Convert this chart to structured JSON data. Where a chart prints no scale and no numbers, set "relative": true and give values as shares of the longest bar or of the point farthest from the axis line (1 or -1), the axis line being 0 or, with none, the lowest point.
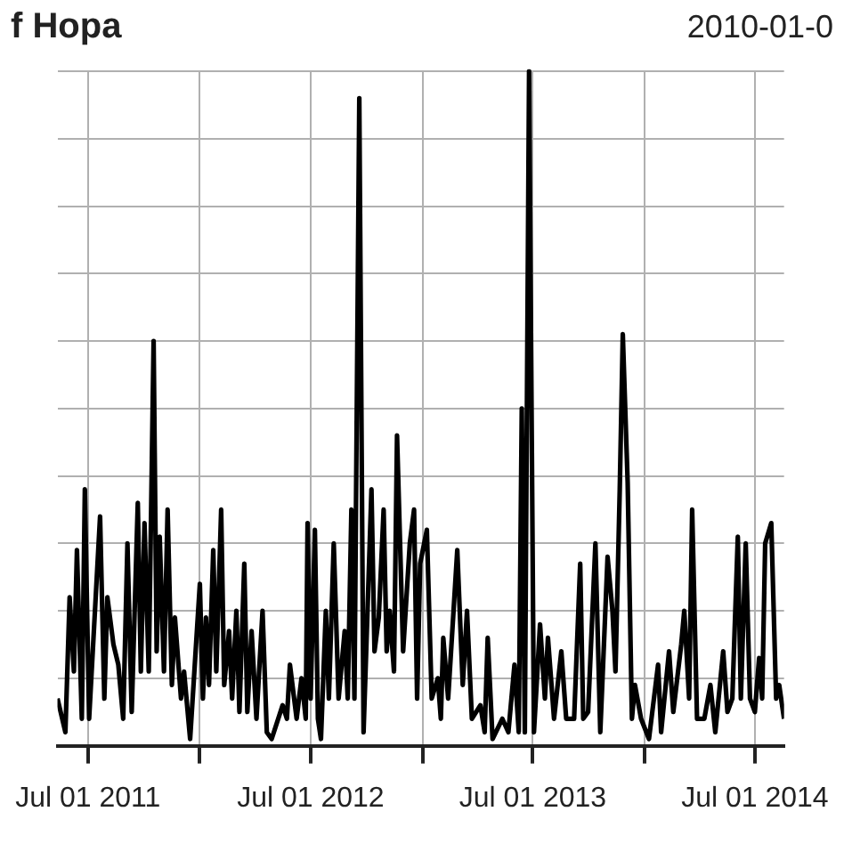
{
  "chart_data": {
    "type": "line",
    "title": "f Hopa",
    "subtitle": "2010-01-0",
    "relative": true,
    "color": "#000000",
    "x": [
      "2011-05-12",
      "2011-05-25",
      "2011-06-01",
      "2011-06-08",
      "2011-06-13",
      "2011-06-21",
      "2011-06-26",
      "2011-07-03",
      "2011-07-21",
      "2011-07-28",
      "2011-08-02",
      "2011-08-12",
      "2011-08-20",
      "2011-08-28",
      "2011-09-04",
      "2011-09-11",
      "2011-09-21",
      "2011-09-26",
      "2011-10-02",
      "2011-10-09",
      "2011-10-17",
      "2011-10-22",
      "2011-10-27",
      "2011-11-03",
      "2011-11-09",
      "2011-11-16",
      "2011-11-21",
      "2011-12-01",
      "2011-12-06",
      "2011-12-16",
      "2012-01-01",
      "2012-01-06",
      "2012-01-11",
      "2012-01-16",
      "2012-01-23",
      "2012-01-28",
      "2012-02-05",
      "2012-02-10",
      "2012-02-18",
      "2012-02-23",
      "2012-03-01",
      "2012-03-06",
      "2012-03-14",
      "2012-03-19",
      "2012-03-26",
      "2012-04-03",
      "2012-04-13",
      "2012-04-20",
      "2012-04-28",
      "2012-05-16",
      "2012-05-23",
      "2012-05-28",
      "2012-06-08",
      "2012-06-16",
      "2012-06-23",
      "2012-06-26",
      "2012-07-01",
      "2012-07-08",
      "2012-07-13",
      "2012-07-18",
      "2012-07-26",
      "2012-07-31",
      "2012-08-08",
      "2012-08-16",
      "2012-08-26",
      "2012-08-31",
      "2012-09-06",
      "2012-09-11",
      "2012-09-19",
      "2012-09-26",
      "2012-10-09",
      "2012-10-14",
      "2012-10-21",
      "2012-10-29",
      "2012-11-03",
      "2012-11-08",
      "2012-11-15",
      "2012-11-20",
      "2012-11-30",
      "2012-12-11",
      "2012-12-18",
      "2012-12-23",
      "2012-12-28",
      "2013-01-08",
      "2013-01-16",
      "2013-01-26",
      "2013-01-31",
      "2013-02-04",
      "2013-02-12",
      "2013-02-27",
      "2013-03-08",
      "2013-03-15",
      "2013-03-23",
      "2013-04-06",
      "2013-04-13",
      "2013-04-18",
      "2013-04-26",
      "2013-05-12",
      "2013-05-22",
      "2013-06-01",
      "2013-06-08",
      "2013-06-13",
      "2013-06-18",
      "2013-06-25",
      "2013-07-03",
      "2013-07-13",
      "2013-07-21",
      "2013-07-26",
      "2013-08-05",
      "2013-08-17",
      "2013-08-25",
      "2013-09-07",
      "2013-09-17",
      "2013-09-22",
      "2013-09-30",
      "2013-10-12",
      "2013-10-20",
      "2013-11-01",
      "2013-11-09",
      "2013-11-14",
      "2013-11-21",
      "2013-11-26",
      "2013-12-04",
      "2013-12-11",
      "2013-12-16",
      "2013-12-26",
      "2014-01-08",
      "2014-01-23",
      "2014-01-28",
      "2014-02-10",
      "2014-02-17",
      "2014-03-02",
      "2014-03-07",
      "2014-03-15",
      "2014-03-20",
      "2014-03-28",
      "2014-04-09",
      "2014-04-19",
      "2014-04-27",
      "2014-05-10",
      "2014-05-17",
      "2014-05-25",
      "2014-06-03",
      "2014-06-08",
      "2014-06-16",
      "2014-06-23",
      "2014-07-01",
      "2014-07-08",
      "2014-07-13",
      "2014-07-18",
      "2014-07-28",
      "2014-08-05",
      "2014-08-10",
      "2014-08-18"
    ],
    "values": [
      0.07,
      0.02,
      0.22,
      0.11,
      0.29,
      0.04,
      0.38,
      0.04,
      0.34,
      0.07,
      0.22,
      0.15,
      0.12,
      0.04,
      0.3,
      0.05,
      0.36,
      0.11,
      0.33,
      0.11,
      0.6,
      0.14,
      0.31,
      0.11,
      0.35,
      0.09,
      0.19,
      0.07,
      0.11,
      0.01,
      0.24,
      0.07,
      0.19,
      0.09,
      0.29,
      0.11,
      0.35,
      0.09,
      0.17,
      0.07,
      0.2,
      0.05,
      0.27,
      0.05,
      0.17,
      0.04,
      0.2,
      0.02,
      0.01,
      0.06,
      0.04,
      0.12,
      0.04,
      0.1,
      0.04,
      0.33,
      0.07,
      0.32,
      0.04,
      0.01,
      0.2,
      0.07,
      0.3,
      0.07,
      0.17,
      0.07,
      0.35,
      0.07,
      0.96,
      0.02,
      0.38,
      0.14,
      0.19,
      0.35,
      0.14,
      0.2,
      0.11,
      0.46,
      0.14,
      0.3,
      0.35,
      0.07,
      0.27,
      0.32,
      0.07,
      0.1,
      0.04,
      0.16,
      0.07,
      0.29,
      0.09,
      0.2,
      0.04,
      0.06,
      0.02,
      0.16,
      0.01,
      0.04,
      0.02,
      0.12,
      0.02,
      0.5,
      0.02,
      1,
      0.02,
      0.18,
      0.07,
      0.16,
      0.04,
      0.14,
      0.04,
      0.04,
      0.27,
      0.04,
      0.05,
      0.3,
      0.02,
      0.28,
      0.2,
      0.11,
      0.38,
      0.61,
      0.39,
      0.04,
      0.09,
      0.04,
      0.01,
      0.12,
      0.02,
      0.14,
      0.05,
      0.15,
      0.2,
      0.07,
      0.35,
      0.04,
      0.04,
      0.09,
      0.02,
      0.14,
      0.05,
      0.07,
      0.31,
      0.07,
      0.3,
      0.07,
      0.05,
      0.13,
      0.07,
      0.3,
      0.33,
      0.07,
      0.09,
      0.04
    ],
    "xlim": [
      "2011-05-12",
      "2014-08-18"
    ],
    "xticks": [
      {
        "value": "2011-07-01",
        "label": "Jul 01 2011"
      },
      {
        "value": "2012-01-01",
        "label": null
      },
      {
        "value": "2012-07-01",
        "label": "Jul 01 2012"
      },
      {
        "value": "2013-01-01",
        "label": null
      },
      {
        "value": "2013-07-01",
        "label": "Jul 01 2013"
      },
      {
        "value": "2014-01-01",
        "label": null
      },
      {
        "value": "2014-07-01",
        "label": "Jul 01 2014"
      }
    ],
    "grid": true,
    "legend": false,
    "marker": "none",
    "line_style": "solid"
  }
}
